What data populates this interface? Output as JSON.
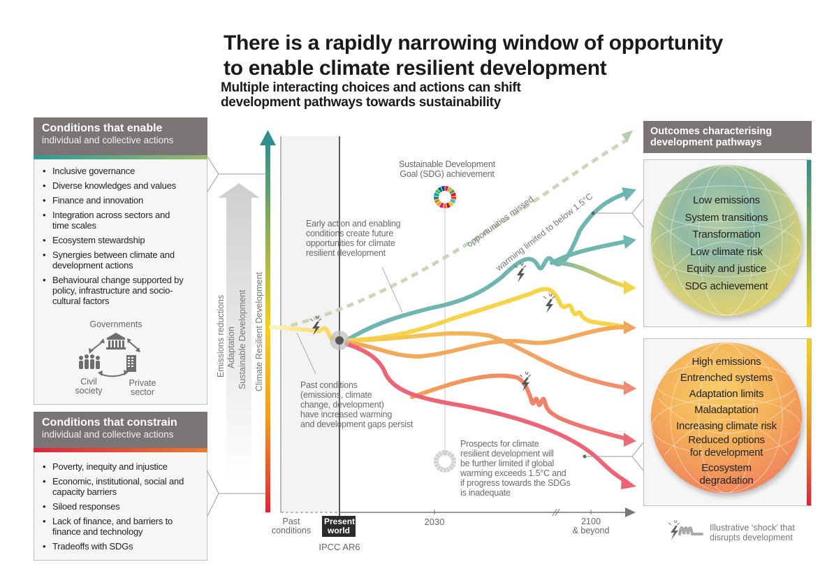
{
  "title_line1": "There is a rapidly narrowing window of opportunity",
  "title_line2": "to enable climate resilient development",
  "subtitle_line1": "Multiple interacting choices and actions can shift",
  "subtitle_line2": "development pathways towards sustainability",
  "enable_panel": {
    "heading": "Conditions that enable",
    "subheading": "individual and collective actions",
    "items": [
      "Inclusive governance",
      "Diverse knowledges and values",
      "Finance and innovation",
      "Integration across sectors and time scales",
      "Ecosystem stewardship",
      "Synergies between climate and development actions",
      "Behavioural change supported by policy, infrastructure and socio-cultural factors"
    ],
    "actors": {
      "governments": "Governments",
      "civil_society_1": "Civil",
      "civil_society_2": "society",
      "private_sector_1": "Private",
      "private_sector_2": "sector"
    }
  },
  "constrain_panel": {
    "heading": "Conditions that constrain",
    "subheading": "individual and collective actions",
    "items": [
      "Poverty, inequity and injustice",
      "Economic, institutional, social and capacity barriers",
      "Siloed responses",
      "Lack of finance, and barriers to finance and technology",
      "Tradeoffs with SDGs"
    ]
  },
  "vertical_labels": {
    "emissions": "Emissions reductions",
    "adaptation": "Adaptation",
    "sustainable": "Sustainable Development",
    "crd_axis": "Climate Resilient Development"
  },
  "annotations": {
    "sdg_1": "Sustainable Development",
    "sdg_2": "Goal (SDG) achievement",
    "early_action": [
      "Early action and enabling",
      "conditions create future",
      "opportunities for climate",
      "resilient development"
    ],
    "past_conditions": [
      "Past conditions",
      "(emissions, climate",
      "change, development)",
      "have increased warming",
      "and development gaps persist"
    ],
    "prospects": [
      "Prospects for climate",
      "resilient development will",
      "be further limited if global",
      "warming exceeds 1.5°C and",
      "if progress towards the SDGs",
      "is inadequate"
    ],
    "opportunities_missed": "opportunities missed",
    "warming_limited": "warming limited to below 1.5°C"
  },
  "time_axis": {
    "past_1": "Past",
    "past_2": "conditions",
    "present_1": "Present",
    "present_2": "world",
    "ipcc": "IPCC AR6",
    "mid": "2030",
    "end_1": "2100",
    "end_2": "& beyond"
  },
  "outcomes": {
    "heading_1": "Outcomes characterising",
    "heading_2": "development pathways",
    "positive": [
      "Low emissions",
      "System transitions",
      "Transformation",
      "Low climate risk",
      "Equity and justice",
      "SDG achievement"
    ],
    "negative": [
      "High emissions",
      "Entrenched systems",
      "Adaptation limits",
      "Maladaptation",
      "Increasing climate risk",
      "Reduced options",
      "for development",
      "Ecosystem",
      "degradation"
    ]
  },
  "legend": {
    "shock_1": "Illustrative ‘shock’ that",
    "shock_2": "disrupts development"
  },
  "colors": {
    "teal": "#5fb0ad",
    "yellow": "#f7d34a",
    "orange": "#f2a455",
    "red": "#ea5b6e",
    "header_gray": "#7a7574"
  }
}
